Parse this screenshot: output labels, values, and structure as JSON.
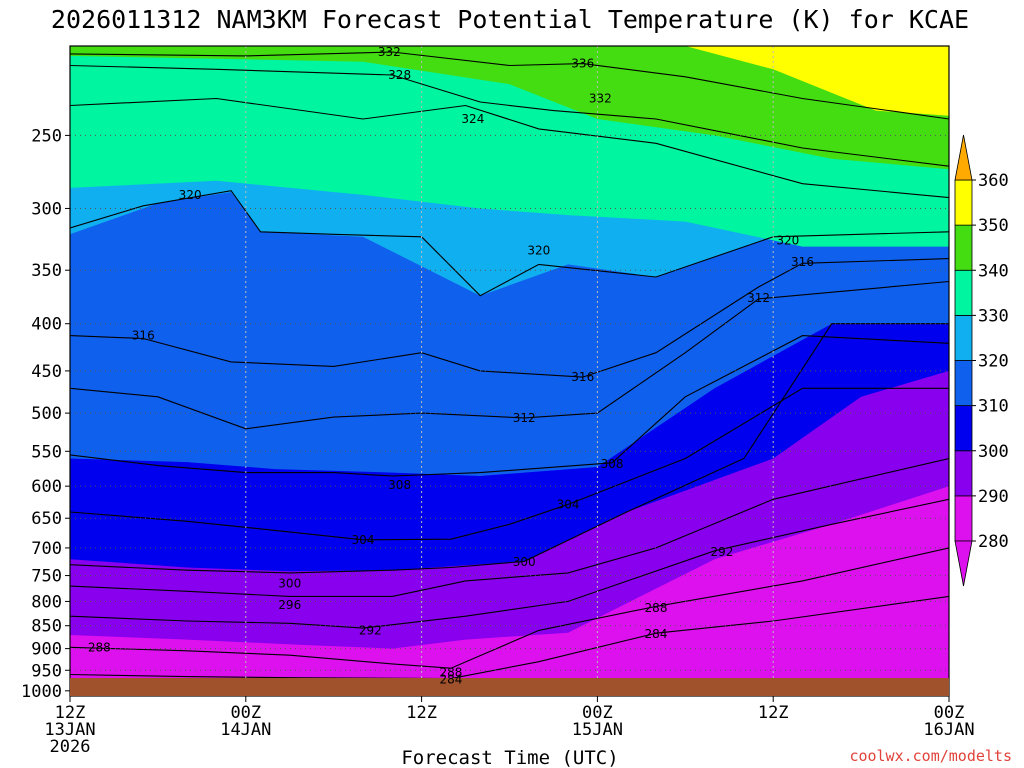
{
  "chart_data": {
    "type": "heatmap",
    "title": "2026011312 NAM3KM Forecast Potential Temperature (K) for KCAE",
    "xlabel": "Forecast Time (UTC)",
    "ylabel": "",
    "x_ticks": [
      {
        "hour": 0,
        "line1": "12Z",
        "line2": "13JAN",
        "line3": "2026"
      },
      {
        "hour": 12,
        "line1": "00Z",
        "line2": "14JAN",
        "line3": ""
      },
      {
        "hour": 24,
        "line1": "12Z",
        "line2": "",
        "line3": ""
      },
      {
        "hour": 36,
        "line1": "00Z",
        "line2": "15JAN",
        "line3": ""
      },
      {
        "hour": 48,
        "line1": "12Z",
        "line2": "",
        "line3": ""
      },
      {
        "hour": 60,
        "line1": "00Z",
        "line2": "16JAN",
        "line3": ""
      }
    ],
    "xlim": [
      0,
      60
    ],
    "y_ticks": [
      250,
      300,
      350,
      400,
      450,
      500,
      550,
      600,
      650,
      700,
      750,
      800,
      850,
      900,
      950,
      1000
    ],
    "ylim": [
      200,
      1013
    ],
    "y_scale": "log-pressure",
    "colorbar": {
      "levels": [
        280,
        290,
        300,
        310,
        320,
        330,
        340,
        350,
        360
      ],
      "colors": [
        "#dd11ee",
        "#8800ee",
        "#0000ee",
        "#1060ee",
        "#10b0f0",
        "#00f5a0",
        "#44dd11",
        "#ffff00",
        "#ffaa00"
      ],
      "ticks": [
        280,
        290,
        300,
        310,
        320,
        330,
        340,
        350,
        360
      ]
    },
    "ground_color": "#a0522d",
    "contour_interval": 2,
    "contour_labels": [
      {
        "value": "332",
        "hour": 21.8,
        "p": 203
      },
      {
        "value": "328",
        "hour": 22.5,
        "p": 215
      },
      {
        "value": "336",
        "hour": 35.0,
        "p": 209
      },
      {
        "value": "332",
        "hour": 36.2,
        "p": 228
      },
      {
        "value": "324",
        "hour": 27.5,
        "p": 240
      },
      {
        "value": "320",
        "hour": 8.2,
        "p": 290
      },
      {
        "value": "320",
        "hour": 32.0,
        "p": 333
      },
      {
        "value": "320",
        "hour": 49.0,
        "p": 325
      },
      {
        "value": "316",
        "hour": 50.0,
        "p": 343
      },
      {
        "value": "312",
        "hour": 47.0,
        "p": 375
      },
      {
        "value": "316",
        "hour": 5.0,
        "p": 412
      },
      {
        "value": "316",
        "hour": 35.0,
        "p": 457
      },
      {
        "value": "312",
        "hour": 31.0,
        "p": 506
      },
      {
        "value": "308",
        "hour": 37.0,
        "p": 568
      },
      {
        "value": "308",
        "hour": 22.5,
        "p": 598
      },
      {
        "value": "304",
        "hour": 34.0,
        "p": 628
      },
      {
        "value": "304",
        "hour": 20.0,
        "p": 686
      },
      {
        "value": "300",
        "hour": 31.0,
        "p": 725
      },
      {
        "value": "300",
        "hour": 15.0,
        "p": 765
      },
      {
        "value": "296",
        "hour": 15.0,
        "p": 807
      },
      {
        "value": "292",
        "hour": 44.5,
        "p": 707
      },
      {
        "value": "292",
        "hour": 20.5,
        "p": 860
      },
      {
        "value": "288",
        "hour": 2.0,
        "p": 897
      },
      {
        "value": "288",
        "hour": 40.0,
        "p": 813
      },
      {
        "value": "284",
        "hour": 40.0,
        "p": 868
      },
      {
        "value": "288",
        "hour": 26.0,
        "p": 955
      },
      {
        "value": "284",
        "hour": 26.0,
        "p": 972
      }
    ],
    "contour_lines_approx": [
      {
        "level": 332,
        "points": [
          [
            0,
            204
          ],
          [
            12,
            205
          ],
          [
            22,
            203
          ],
          [
            30,
            210
          ],
          [
            35,
            209
          ],
          [
            42,
            216
          ],
          [
            50,
            228
          ],
          [
            60,
            240
          ]
        ]
      },
      {
        "level": 328,
        "points": [
          [
            0,
            210
          ],
          [
            10,
            212
          ],
          [
            22,
            215
          ],
          [
            28,
            230
          ],
          [
            33,
            235
          ],
          [
            40,
            240
          ],
          [
            50,
            258
          ],
          [
            60,
            270
          ]
        ]
      },
      {
        "level": 324,
        "points": [
          [
            0,
            232
          ],
          [
            10,
            228
          ],
          [
            20,
            240
          ],
          [
            27,
            232
          ],
          [
            32,
            246
          ],
          [
            40,
            255
          ],
          [
            50,
            282
          ],
          [
            60,
            292
          ]
        ]
      },
      {
        "level": 320,
        "points": [
          [
            0,
            315
          ],
          [
            5,
            298
          ],
          [
            11,
            287
          ],
          [
            13,
            318
          ],
          [
            18,
            320
          ],
          [
            24,
            322
          ],
          [
            28,
            373
          ],
          [
            32,
            345
          ],
          [
            40,
            356
          ],
          [
            48,
            322
          ],
          [
            60,
            318
          ]
        ]
      },
      {
        "level": 316,
        "points": [
          [
            0,
            412
          ],
          [
            5,
            415
          ],
          [
            11,
            440
          ],
          [
            18,
            445
          ],
          [
            24,
            430
          ],
          [
            28,
            450
          ],
          [
            35,
            457
          ],
          [
            40,
            430
          ],
          [
            47,
            365
          ],
          [
            50,
            344
          ],
          [
            60,
            340
          ]
        ]
      },
      {
        "level": 312,
        "points": [
          [
            0,
            470
          ],
          [
            6,
            480
          ],
          [
            12,
            520
          ],
          [
            18,
            505
          ],
          [
            24,
            500
          ],
          [
            31,
            506
          ],
          [
            36,
            500
          ],
          [
            42,
            430
          ],
          [
            47,
            376
          ],
          [
            60,
            360
          ]
        ]
      },
      {
        "level": 308,
        "points": [
          [
            0,
            555
          ],
          [
            6,
            570
          ],
          [
            12,
            580
          ],
          [
            18,
            580
          ],
          [
            22,
            585
          ],
          [
            28,
            580
          ],
          [
            37,
            566
          ],
          [
            42,
            480
          ],
          [
            50,
            412
          ],
          [
            60,
            420
          ]
        ]
      },
      {
        "level": 304,
        "points": [
          [
            0,
            640
          ],
          [
            8,
            655
          ],
          [
            14,
            670
          ],
          [
            20,
            686
          ],
          [
            26,
            685
          ],
          [
            30,
            660
          ],
          [
            34,
            628
          ],
          [
            42,
            560
          ],
          [
            50,
            470
          ],
          [
            60,
            470
          ]
        ]
      },
      {
        "level": 300,
        "points": [
          [
            0,
            730
          ],
          [
            8,
            740
          ],
          [
            15,
            745
          ],
          [
            22,
            740
          ],
          [
            26,
            735
          ],
          [
            31,
            724
          ],
          [
            38,
            640
          ],
          [
            46,
            560
          ],
          [
            52,
            400
          ],
          [
            60,
            400
          ]
        ]
      },
      {
        "level": 296,
        "points": [
          [
            0,
            770
          ],
          [
            8,
            780
          ],
          [
            15,
            790
          ],
          [
            22,
            790
          ],
          [
            27,
            760
          ],
          [
            34,
            745
          ],
          [
            40,
            700
          ],
          [
            48,
            620
          ],
          [
            60,
            560
          ]
        ]
      },
      {
        "level": 292,
        "points": [
          [
            0,
            830
          ],
          [
            8,
            840
          ],
          [
            15,
            845
          ],
          [
            20,
            855
          ],
          [
            27,
            830
          ],
          [
            34,
            800
          ],
          [
            44,
            705
          ],
          [
            52,
            660
          ],
          [
            60,
            620
          ]
        ]
      },
      {
        "level": 288,
        "points": [
          [
            0,
            897
          ],
          [
            8,
            905
          ],
          [
            15,
            915
          ],
          [
            22,
            935
          ],
          [
            26,
            945
          ],
          [
            32,
            860
          ],
          [
            40,
            810
          ],
          [
            50,
            760
          ],
          [
            60,
            700
          ]
        ]
      },
      {
        "level": 284,
        "points": [
          [
            0,
            960
          ],
          [
            8,
            965
          ],
          [
            16,
            968
          ],
          [
            26,
            970
          ],
          [
            32,
            930
          ],
          [
            40,
            866
          ],
          [
            48,
            840
          ],
          [
            60,
            790
          ]
        ]
      }
    ],
    "fill_bands": [
      {
        "level_min": 330,
        "upper": [
          [
            0,
            200
          ],
          [
            60,
            200
          ]
        ],
        "lower": [
          [
            0,
            285
          ],
          [
            10,
            280
          ],
          [
            20,
            290
          ],
          [
            28,
            300
          ],
          [
            34,
            305
          ],
          [
            42,
            310
          ],
          [
            50,
            330
          ],
          [
            60,
            330
          ]
        ]
      },
      {
        "level_min": 340,
        "upper": [
          [
            0,
            200
          ],
          [
            60,
            200
          ]
        ],
        "lower": [
          [
            0,
            205
          ],
          [
            20,
            208
          ],
          [
            30,
            220
          ],
          [
            36,
            240
          ],
          [
            44,
            250
          ],
          [
            52,
            265
          ],
          [
            60,
            272
          ]
        ]
      },
      {
        "level_min": 350,
        "upper": [
          [
            42,
            200
          ],
          [
            60,
            200
          ]
        ],
        "lower": [
          [
            42,
            200
          ],
          [
            48,
            212
          ],
          [
            55,
            235
          ],
          [
            60,
            238
          ]
        ]
      },
      {
        "level_min": 320,
        "upper": [
          [
            0,
            200
          ],
          [
            60,
            200
          ]
        ],
        "lower": [
          [
            0,
            320
          ],
          [
            6,
            296
          ],
          [
            11,
            288
          ],
          [
            13,
            318
          ],
          [
            20,
            322
          ],
          [
            28,
            373
          ],
          [
            34,
            345
          ],
          [
            40,
            356
          ],
          [
            48,
            322
          ],
          [
            60,
            320
          ]
        ]
      },
      {
        "level_min": 310,
        "upper": [
          [
            0,
            200
          ],
          [
            60,
            200
          ]
        ],
        "lower": [
          [
            0,
            560
          ],
          [
            8,
            565
          ],
          [
            14,
            575
          ],
          [
            22,
            580
          ],
          [
            28,
            585
          ],
          [
            36,
            572
          ],
          [
            44,
            470
          ],
          [
            52,
            400
          ],
          [
            60,
            400
          ]
        ]
      },
      {
        "level_min": 300,
        "upper": [
          [
            0,
            200
          ],
          [
            60,
            200
          ]
        ],
        "lower": [
          [
            0,
            720
          ],
          [
            8,
            735
          ],
          [
            15,
            742
          ],
          [
            22,
            740
          ],
          [
            31,
            724
          ],
          [
            38,
            640
          ],
          [
            48,
            560
          ],
          [
            54,
            480
          ],
          [
            60,
            450
          ]
        ]
      },
      {
        "level_min": 290,
        "upper": [
          [
            0,
            200
          ],
          [
            60,
            200
          ]
        ],
        "lower": [
          [
            0,
            870
          ],
          [
            8,
            880
          ],
          [
            16,
            892
          ],
          [
            22,
            900
          ],
          [
            27,
            880
          ],
          [
            34,
            865
          ],
          [
            44,
            720
          ],
          [
            52,
            660
          ],
          [
            60,
            600
          ]
        ]
      },
      {
        "level_min": 280,
        "upper": [
          [
            0,
            200
          ],
          [
            60,
            200
          ]
        ],
        "lower": [
          [
            0,
            1013
          ],
          [
            60,
            1013
          ]
        ]
      }
    ]
  },
  "credit_text": "coolwx.com/modelts"
}
